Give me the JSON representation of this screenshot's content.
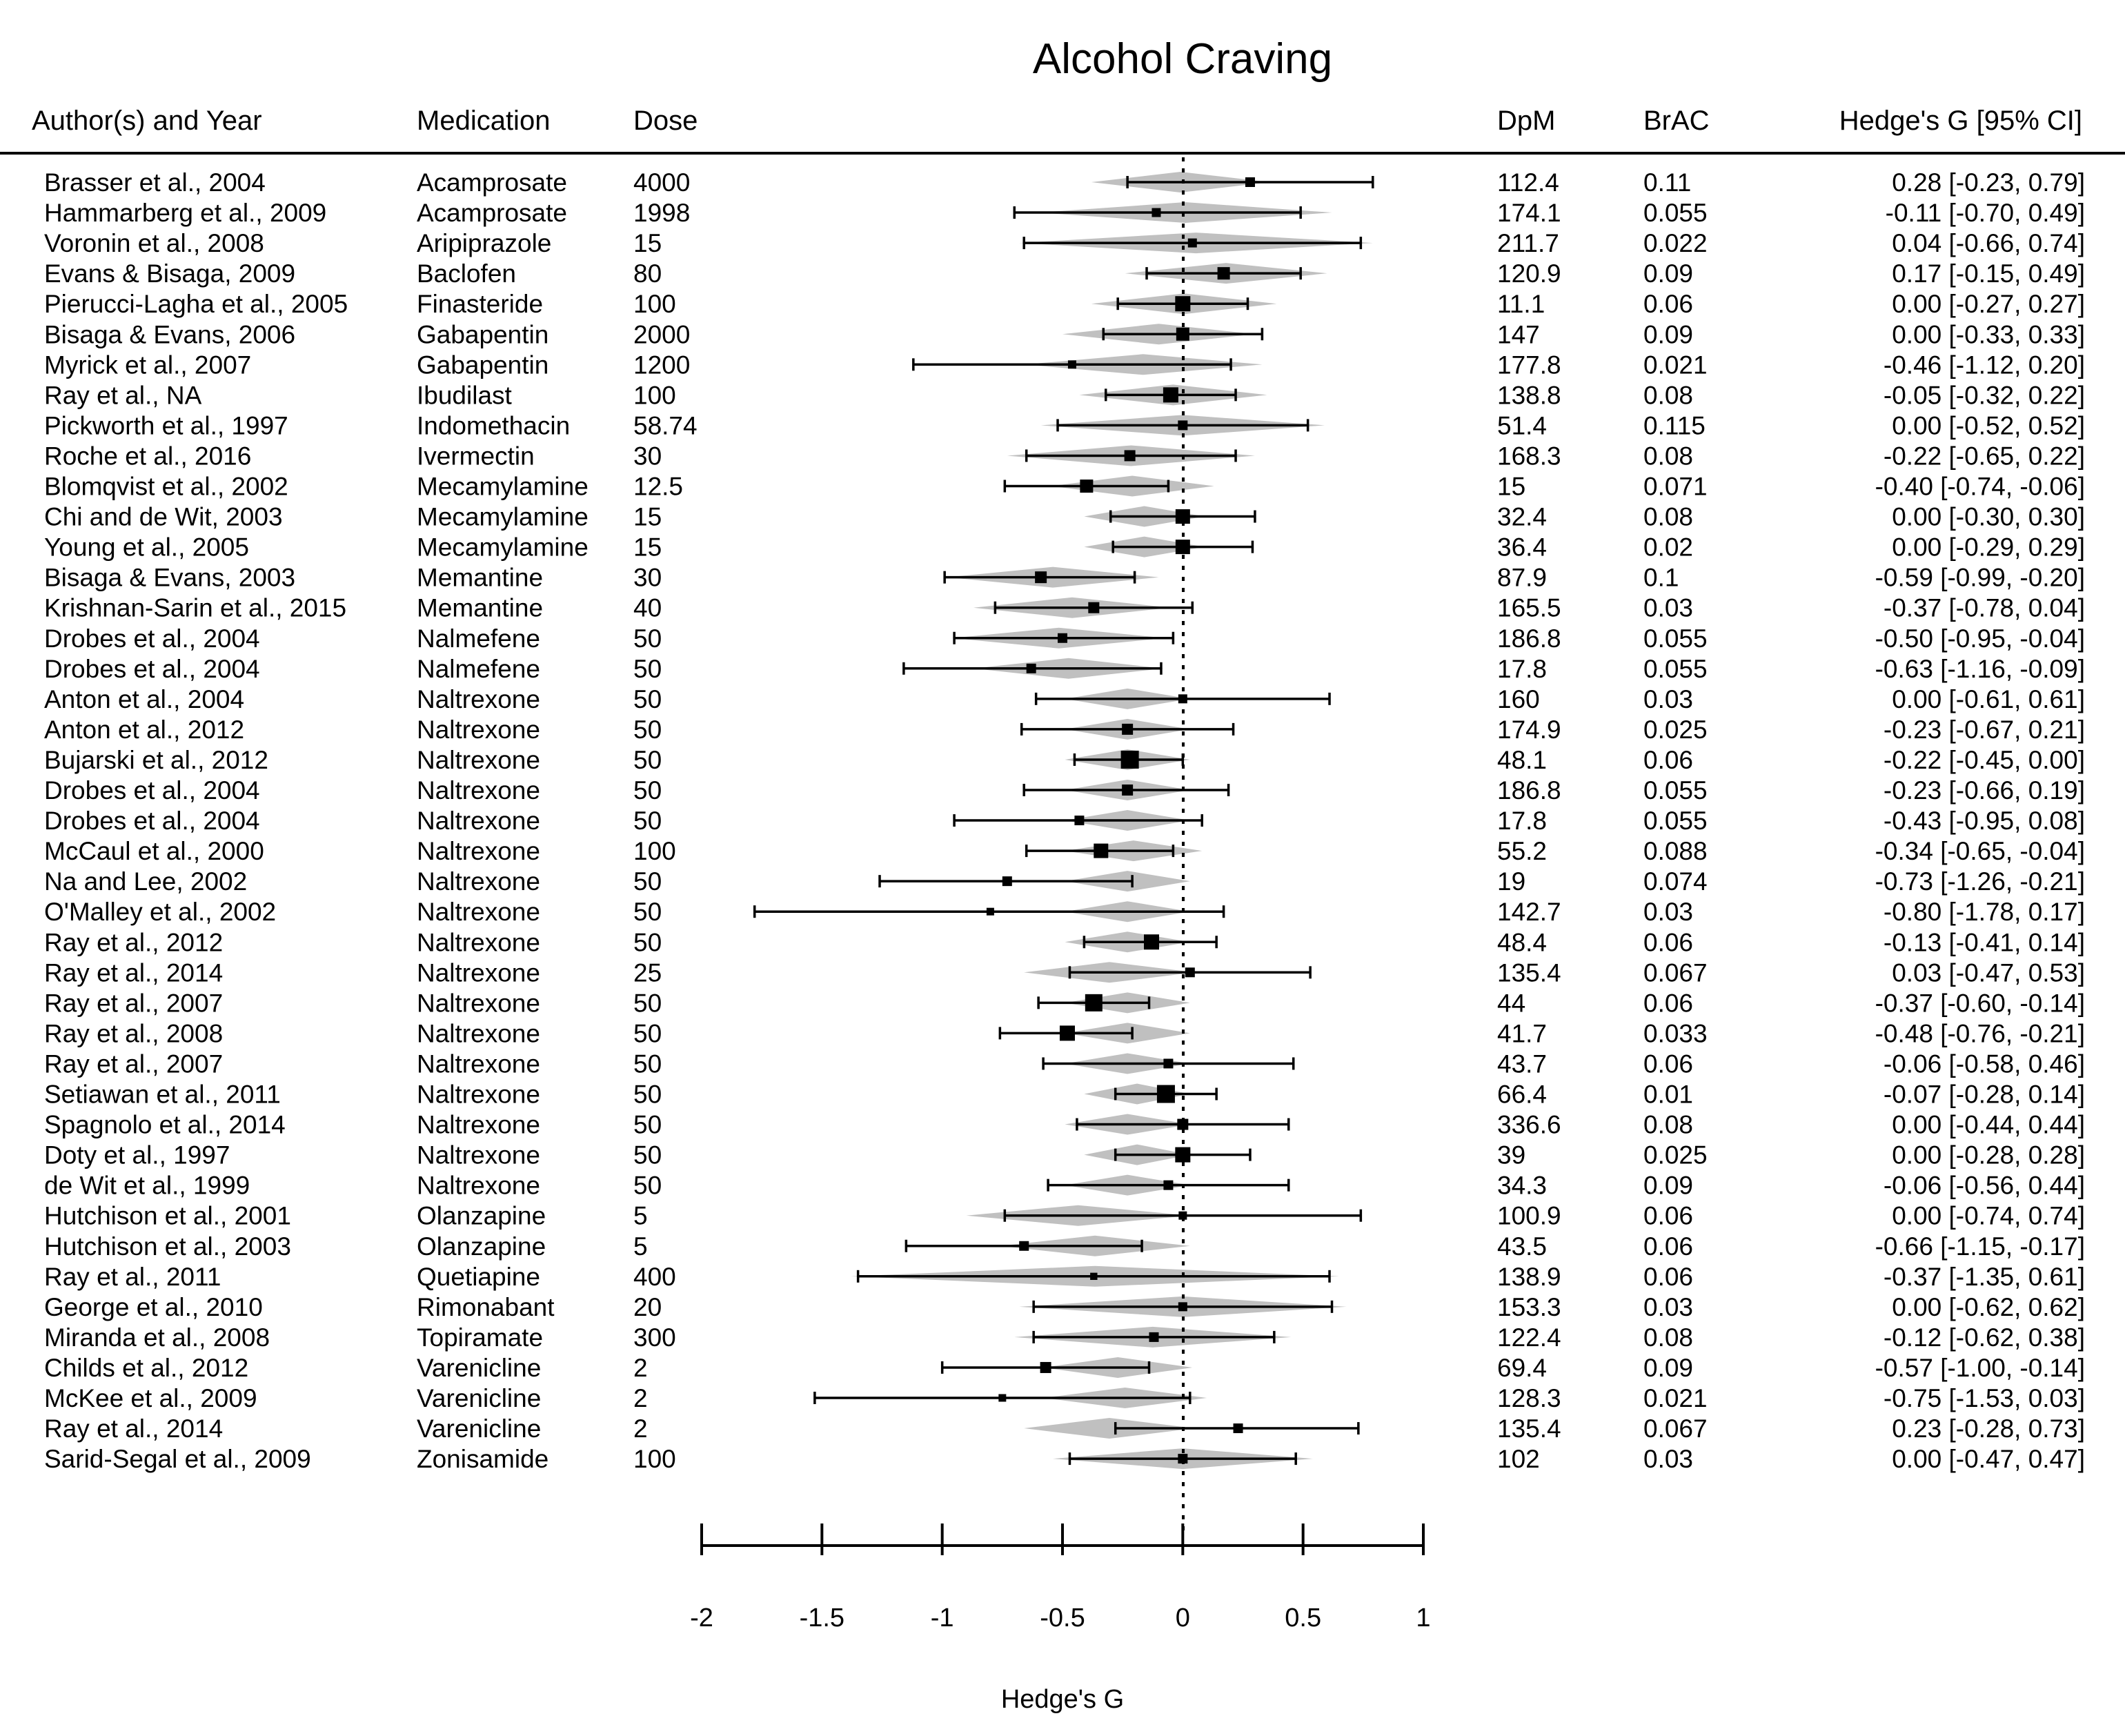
{
  "chart_data": {
    "type": "forest",
    "title": "Alcohol Craving",
    "xlabel": "Hedge's G",
    "xlim": [
      -2,
      1
    ],
    "xticks": [
      "-2",
      "-1.5",
      "-1",
      "-0.5",
      "0",
      "0.5",
      "1"
    ],
    "columns": {
      "author": "Author(s) and Year",
      "medication": "Medication",
      "dose": "Dose",
      "dpm": "DpM",
      "brac": "BrAC",
      "ci": "Hedge's G [95% CI]"
    },
    "colors": {
      "point": "#000000",
      "prediction": "#c0c0c0",
      "axis": "#000000"
    },
    "studies": [
      {
        "author": "Brasser et al., 2004",
        "medication": "Acamprosate",
        "dose": "4000",
        "dpm": "112.4",
        "brac": "0.11",
        "ci_text": "0.28 [-0.23,  0.79]",
        "g": 0.28,
        "lo": -0.23,
        "hi": 0.79,
        "w": 0.3,
        "pred": [
          -0.38,
          0.36
        ]
      },
      {
        "author": "Hammarberg et al., 2009",
        "medication": "Acamprosate",
        "dose": "1998",
        "dpm": "174.1",
        "brac": "0.055",
        "ci_text": "-0.11 [-0.70,  0.49]",
        "g": -0.11,
        "lo": -0.7,
        "hi": 0.49,
        "w": 0.25,
        "pred": [
          -0.6,
          0.62
        ]
      },
      {
        "author": "Voronin et al., 2008",
        "medication": "Aripiprazole",
        "dose": "15",
        "dpm": "211.7",
        "brac": "0.022",
        "ci_text": "0.04 [-0.66,  0.74]",
        "g": 0.04,
        "lo": -0.66,
        "hi": 0.74,
        "w": 0.25,
        "pred": [
          -0.68,
          0.79
        ]
      },
      {
        "author": "Evans & Bisaga, 2009",
        "medication": "Baclofen",
        "dose": "80",
        "dpm": "120.9",
        "brac": "0.09",
        "ci_text": "0.17 [-0.15,  0.49]",
        "g": 0.17,
        "lo": -0.15,
        "hi": 0.49,
        "w": 0.5,
        "pred": [
          -0.24,
          0.6
        ]
      },
      {
        "author": "Pierucci-Lagha et al., 2005",
        "medication": "Finasteride",
        "dose": "100",
        "dpm": "11.1",
        "brac": "0.06",
        "ci_text": "0.00 [-0.27,  0.27]",
        "g": 0.0,
        "lo": -0.27,
        "hi": 0.27,
        "w": 0.7,
        "pred": [
          -0.38,
          0.39
        ]
      },
      {
        "author": "Bisaga & Evans, 2006",
        "medication": "Gabapentin",
        "dose": "2000",
        "dpm": "147",
        "brac": "0.09",
        "ci_text": "0.00 [-0.33,  0.33]",
        "g": 0.0,
        "lo": -0.33,
        "hi": 0.33,
        "w": 0.55,
        "pred": [
          -0.5,
          0.3
        ]
      },
      {
        "author": "Myrick et al., 2007",
        "medication": "Gabapentin",
        "dose": "1200",
        "dpm": "177.8",
        "brac": "0.021",
        "ci_text": "-0.46 [-1.12,  0.20]",
        "g": -0.46,
        "lo": -1.12,
        "hi": 0.2,
        "w": 0.2,
        "pred": [
          -0.66,
          0.33
        ]
      },
      {
        "author": "Ray et al., NA",
        "medication": "Ibudilast",
        "dose": "100",
        "dpm": "138.8",
        "brac": "0.08",
        "ci_text": "-0.05 [-0.32,  0.22]",
        "g": -0.05,
        "lo": -0.32,
        "hi": 0.22,
        "w": 0.7,
        "pred": [
          -0.43,
          0.35
        ]
      },
      {
        "author": "Pickworth et al., 1997",
        "medication": "Indomethacin",
        "dose": "58.74",
        "dpm": "51.4",
        "brac": "0.115",
        "ci_text": "0.00 [-0.52,  0.52]",
        "g": 0.0,
        "lo": -0.52,
        "hi": 0.52,
        "w": 0.3,
        "pred": [
          -0.59,
          0.59
        ]
      },
      {
        "author": "Roche et al., 2016",
        "medication": "Ivermectin",
        "dose": "30",
        "dpm": "168.3",
        "brac": "0.08",
        "ci_text": "-0.22 [-0.65,  0.22]",
        "g": -0.22,
        "lo": -0.65,
        "hi": 0.22,
        "w": 0.4,
        "pred": [
          -0.73,
          0.3
        ]
      },
      {
        "author": "Blomqvist et al., 2002",
        "medication": "Mecamylamine",
        "dose": "12.5",
        "dpm": "15",
        "brac": "0.071",
        "ci_text": "-0.40 [-0.74, -0.06]",
        "g": -0.4,
        "lo": -0.74,
        "hi": -0.06,
        "w": 0.55,
        "pred": [
          -0.55,
          0.13
        ]
      },
      {
        "author": "Chi and de Wit, 2003",
        "medication": "Mecamylamine",
        "dose": "15",
        "dpm": "32.4",
        "brac": "0.08",
        "ci_text": "0.00 [-0.30,  0.30]",
        "g": 0.0,
        "lo": -0.3,
        "hi": 0.3,
        "w": 0.65,
        "pred": [
          -0.41,
          0.09
        ]
      },
      {
        "author": "Young et al., 2005",
        "medication": "Mecamylamine",
        "dose": "15",
        "dpm": "36.4",
        "brac": "0.02",
        "ci_text": "0.00 [-0.29,  0.29]",
        "g": 0.0,
        "lo": -0.29,
        "hi": 0.29,
        "w": 0.65,
        "pred": [
          -0.41,
          0.09
        ]
      },
      {
        "author": "Bisaga & Evans, 2003",
        "medication": "Memantine",
        "dose": "30",
        "dpm": "87.9",
        "brac": "0.1",
        "ci_text": "-0.59 [-0.99, -0.20]",
        "g": -0.59,
        "lo": -0.99,
        "hi": -0.2,
        "w": 0.45,
        "pred": [
          -0.98,
          -0.1
        ]
      },
      {
        "author": "Krishnan-Sarin et al., 2015",
        "medication": "Memantine",
        "dose": "40",
        "dpm": "165.5",
        "brac": "0.03",
        "ci_text": "-0.37 [-0.78,  0.04]",
        "g": -0.37,
        "lo": -0.78,
        "hi": 0.04,
        "w": 0.4,
        "pred": [
          -0.87,
          -0.05
        ]
      },
      {
        "author": "Drobes et al., 2004",
        "medication": "Nalmefene",
        "dose": "50",
        "dpm": "186.8",
        "brac": "0.055",
        "ci_text": "-0.50 [-0.95, -0.04]",
        "g": -0.5,
        "lo": -0.95,
        "hi": -0.04,
        "w": 0.3,
        "pred": [
          -0.96,
          -0.07
        ]
      },
      {
        "author": "Drobes et al., 2004",
        "medication": "Nalmefene",
        "dose": "50",
        "dpm": "17.8",
        "brac": "0.055",
        "ci_text": "-0.63 [-1.16, -0.09]",
        "g": -0.63,
        "lo": -1.16,
        "hi": -0.09,
        "w": 0.3,
        "pred": [
          -0.87,
          -0.08
        ]
      },
      {
        "author": "Anton et al., 2004",
        "medication": "Naltrexone",
        "dose": "50",
        "dpm": "160",
        "brac": "0.03",
        "ci_text": "0.00 [-0.61,  0.61]",
        "g": 0.0,
        "lo": -0.61,
        "hi": 0.61,
        "w": 0.25,
        "pred": [
          -0.49,
          0.03
        ]
      },
      {
        "author": "Anton et al., 2012",
        "medication": "Naltrexone",
        "dose": "50",
        "dpm": "174.9",
        "brac": "0.025",
        "ci_text": "-0.23 [-0.67,  0.21]",
        "g": -0.23,
        "lo": -0.67,
        "hi": 0.21,
        "w": 0.4,
        "pred": [
          -0.49,
          0.03
        ]
      },
      {
        "author": "Bujarski et al., 2012",
        "medication": "Naltrexone",
        "dose": "50",
        "dpm": "48.1",
        "brac": "0.06",
        "ci_text": "-0.22 [-0.45,  0.00]",
        "g": -0.22,
        "lo": -0.45,
        "hi": 0.0,
        "w": 0.9,
        "pred": [
          -0.49,
          0.03
        ]
      },
      {
        "author": "Drobes et al., 2004",
        "medication": "Naltrexone",
        "dose": "50",
        "dpm": "186.8",
        "brac": "0.055",
        "ci_text": "-0.23 [-0.66,  0.19]",
        "g": -0.23,
        "lo": -0.66,
        "hi": 0.19,
        "w": 0.4,
        "pred": [
          -0.49,
          0.03
        ]
      },
      {
        "author": "Drobes et al., 2004",
        "medication": "Naltrexone",
        "dose": "50",
        "dpm": "17.8",
        "brac": "0.055",
        "ci_text": "-0.43 [-0.95,  0.08]",
        "g": -0.43,
        "lo": -0.95,
        "hi": 0.08,
        "w": 0.3,
        "pred": [
          -0.49,
          0.03
        ]
      },
      {
        "author": "McCaul et al., 2000",
        "medication": "Naltrexone",
        "dose": "100",
        "dpm": "55.2",
        "brac": "0.088",
        "ci_text": "-0.34 [-0.65, -0.04]",
        "g": -0.34,
        "lo": -0.65,
        "hi": -0.04,
        "w": 0.65,
        "pred": [
          -0.49,
          0.08
        ]
      },
      {
        "author": "Na and Lee, 2002",
        "medication": "Naltrexone",
        "dose": "50",
        "dpm": "19",
        "brac": "0.074",
        "ci_text": "-0.73 [-1.26, -0.21]",
        "g": -0.73,
        "lo": -1.26,
        "hi": -0.21,
        "w": 0.3,
        "pred": [
          -0.49,
          0.03
        ]
      },
      {
        "author": "O'Malley et al., 2002",
        "medication": "Naltrexone",
        "dose": "50",
        "dpm": "142.7",
        "brac": "0.03",
        "ci_text": "-0.80 [-1.78,  0.17]",
        "g": -0.8,
        "lo": -1.78,
        "hi": 0.17,
        "w": 0.15,
        "pred": [
          -0.49,
          0.03
        ]
      },
      {
        "author": "Ray et al., 2012",
        "medication": "Naltrexone",
        "dose": "50",
        "dpm": "48.4",
        "brac": "0.06",
        "ci_text": "-0.13 [-0.41,  0.14]",
        "g": -0.13,
        "lo": -0.41,
        "hi": 0.14,
        "w": 0.7,
        "pred": [
          -0.49,
          0.03
        ]
      },
      {
        "author": "Ray et al., 2014",
        "medication": "Naltrexone",
        "dose": "25",
        "dpm": "135.4",
        "brac": "0.067",
        "ci_text": "0.03 [-0.47,  0.53]",
        "g": 0.03,
        "lo": -0.47,
        "hi": 0.53,
        "w": 0.3,
        "pred": [
          -0.66,
          0.05
        ]
      },
      {
        "author": "Ray et al., 2007",
        "medication": "Naltrexone",
        "dose": "50",
        "dpm": "44",
        "brac": "0.06",
        "ci_text": "-0.37 [-0.60, -0.14]",
        "g": -0.37,
        "lo": -0.6,
        "hi": -0.14,
        "w": 0.85,
        "pred": [
          -0.49,
          0.03
        ]
      },
      {
        "author": "Ray et al., 2008",
        "medication": "Naltrexone",
        "dose": "50",
        "dpm": "41.7",
        "brac": "0.033",
        "ci_text": "-0.48 [-0.76, -0.21]",
        "g": -0.48,
        "lo": -0.76,
        "hi": -0.21,
        "w": 0.7,
        "pred": [
          -0.49,
          0.03
        ]
      },
      {
        "author": "Ray et al., 2007",
        "medication": "Naltrexone",
        "dose": "50",
        "dpm": "43.7",
        "brac": "0.06",
        "ci_text": "-0.06 [-0.58,  0.46]",
        "g": -0.06,
        "lo": -0.58,
        "hi": 0.46,
        "w": 0.3,
        "pred": [
          -0.49,
          0.03
        ]
      },
      {
        "author": "Setiawan et al., 2011",
        "medication": "Naltrexone",
        "dose": "50",
        "dpm": "66.4",
        "brac": "0.01",
        "ci_text": "-0.07 [-0.28,  0.14]",
        "g": -0.07,
        "lo": -0.28,
        "hi": 0.14,
        "w": 0.9,
        "pred": [
          -0.41,
          0.03
        ]
      },
      {
        "author": "Spagnolo et al., 2014",
        "medication": "Naltrexone",
        "dose": "50",
        "dpm": "336.6",
        "brac": "0.08",
        "ci_text": "0.00 [-0.44,  0.44]",
        "g": 0.0,
        "lo": -0.44,
        "hi": 0.44,
        "w": 0.4,
        "pred": [
          -0.49,
          0.03
        ]
      },
      {
        "author": "Doty et al., 1997",
        "medication": "Naltrexone",
        "dose": "50",
        "dpm": "39",
        "brac": "0.025",
        "ci_text": "0.00 [-0.28,  0.28]",
        "g": 0.0,
        "lo": -0.28,
        "hi": 0.28,
        "w": 0.7,
        "pred": [
          -0.41,
          0.03
        ]
      },
      {
        "author": "de Wit et al., 1999",
        "medication": "Naltrexone",
        "dose": "50",
        "dpm": "34.3",
        "brac": "0.09",
        "ci_text": "-0.06 [-0.56,  0.44]",
        "g": -0.06,
        "lo": -0.56,
        "hi": 0.44,
        "w": 0.3,
        "pred": [
          -0.49,
          0.03
        ]
      },
      {
        "author": "Hutchison et al., 2001",
        "medication": "Olanzapine",
        "dose": "5",
        "dpm": "100.9",
        "brac": "0.06",
        "ci_text": "0.00 [-0.74,  0.74]",
        "g": 0.0,
        "lo": -0.74,
        "hi": 0.74,
        "w": 0.2,
        "pred": [
          -0.9,
          0.03
        ]
      },
      {
        "author": "Hutchison et al., 2003",
        "medication": "Olanzapine",
        "dose": "5",
        "dpm": "43.5",
        "brac": "0.06",
        "ci_text": "-0.66 [-1.15, -0.17]",
        "g": -0.66,
        "lo": -1.15,
        "hi": -0.17,
        "w": 0.3,
        "pred": [
          -0.76,
          0.03
        ]
      },
      {
        "author": "Ray et al., 2011",
        "medication": "Quetiapine",
        "dose": "400",
        "dpm": "138.9",
        "brac": "0.06",
        "ci_text": "-0.37 [-1.35,  0.61]",
        "g": -0.37,
        "lo": -1.35,
        "hi": 0.61,
        "w": 0.12,
        "pred": [
          -1.38,
          0.65
        ]
      },
      {
        "author": "George et al., 2010",
        "medication": "Rimonabant",
        "dose": "20",
        "dpm": "153.3",
        "brac": "0.03",
        "ci_text": "0.00 [-0.62,  0.62]",
        "g": 0.0,
        "lo": -0.62,
        "hi": 0.62,
        "w": 0.25,
        "pred": [
          -0.68,
          0.68
        ]
      },
      {
        "author": "Miranda et al., 2008",
        "medication": "Topiramate",
        "dose": "300",
        "dpm": "122.4",
        "brac": "0.08",
        "ci_text": "-0.12 [-0.62,  0.38]",
        "g": -0.12,
        "lo": -0.62,
        "hi": 0.38,
        "w": 0.3,
        "pred": [
          -0.7,
          0.45
        ]
      },
      {
        "author": "Childs et al., 2012",
        "medication": "Varenicline",
        "dose": "2",
        "dpm": "69.4",
        "brac": "0.09",
        "ci_text": "-0.57 [-1.00, -0.14]",
        "g": -0.57,
        "lo": -1.0,
        "hi": -0.14,
        "w": 0.4,
        "pred": [
          -0.58,
          0.04
        ]
      },
      {
        "author": "McKee et al., 2009",
        "medication": "Varenicline",
        "dose": "2",
        "dpm": "128.3",
        "brac": "0.021",
        "ci_text": "-0.75 [-1.53,  0.03]",
        "g": -0.75,
        "lo": -1.53,
        "hi": 0.03,
        "w": 0.15,
        "pred": [
          -0.58,
          0.1
        ]
      },
      {
        "author": "Ray et al., 2014",
        "medication": "Varenicline",
        "dose": "2",
        "dpm": "135.4",
        "brac": "0.067",
        "ci_text": "0.23 [-0.28,  0.73]",
        "g": 0.23,
        "lo": -0.28,
        "hi": 0.73,
        "w": 0.3,
        "pred": [
          -0.66,
          0.05
        ]
      },
      {
        "author": "Sarid-Segal et al., 2009",
        "medication": "Zonisamide",
        "dose": "100",
        "dpm": "102",
        "brac": "0.03",
        "ci_text": "0.00 [-0.47,  0.47]",
        "g": 0.0,
        "lo": -0.47,
        "hi": 0.47,
        "w": 0.3,
        "pred": [
          -0.54,
          0.54
        ]
      }
    ]
  }
}
